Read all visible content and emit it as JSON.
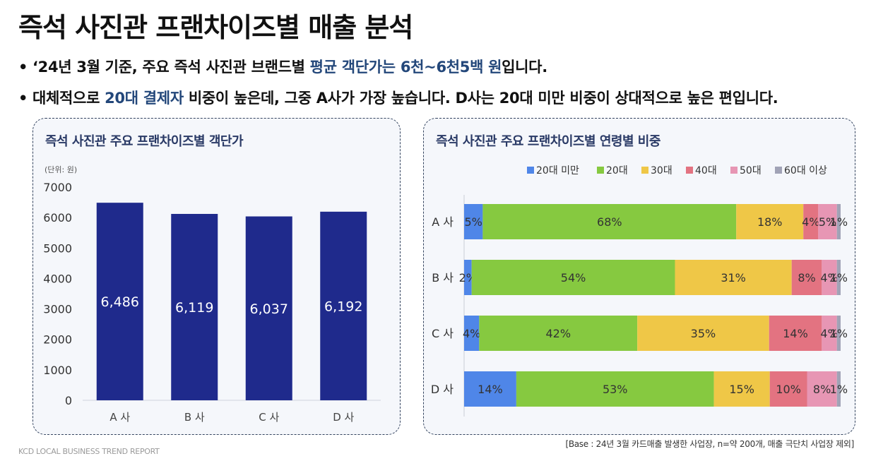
{
  "title": "즉석 사진관 프랜차이즈별 매출 분석",
  "bullets": [
    {
      "pre": "‘24년 3월 기준, 주요 즉석 사진관 브랜드별 ",
      "hl": "평균 객단가는 6천~6천5백 원",
      "post": "입니다."
    },
    {
      "pre": "대체적으로 ",
      "hl": "20대 결제자",
      "post": " 비중이 높은데, 그중 A사가 가장 높습니다. D사는 20대 미만 비중이 상대적으로 높은 편입니다."
    }
  ],
  "footer": {
    "left": "KCD LOCAL BUSINESS TREND REPORT",
    "right": "[Base : 24년 3월 카드매출 발생한 사업장, n=약 200개, 매출 극단치 사업장 제외]"
  },
  "colors": {
    "bar": "#1f2a8c",
    "accent": "#23477a"
  },
  "chart_data": [
    {
      "type": "bar",
      "title": "즉석 사진관 주요 프랜차이즈별 객단가",
      "unit_label": "(단위: 원)",
      "categories": [
        "A 사",
        "B 사",
        "C 사",
        "D 사"
      ],
      "values": [
        6486,
        6119,
        6037,
        6192
      ],
      "value_labels": [
        "6,486",
        "6,119",
        "6,037",
        "6,192"
      ],
      "ylim": [
        0,
        7000
      ],
      "yticks": [
        0,
        1000,
        2000,
        3000,
        4000,
        5000,
        6000,
        7000
      ],
      "color": "#1f2a8c"
    },
    {
      "type": "bar",
      "orientation": "horizontal",
      "stacked": true,
      "title": "즉석 사진관 주요 프랜차이즈별 연령별 비중",
      "legend_position": "top",
      "categories": [
        "A 사",
        "B 사",
        "C 사",
        "D 사"
      ],
      "series": [
        {
          "name": "20대 미만",
          "color": "#4f86e8",
          "values": [
            5,
            2,
            4,
            14
          ]
        },
        {
          "name": "20대",
          "color": "#86c940",
          "values": [
            68,
            54,
            42,
            53
          ]
        },
        {
          "name": "30대",
          "color": "#efc747",
          "values": [
            18,
            31,
            35,
            15
          ]
        },
        {
          "name": "40대",
          "color": "#e37381",
          "values": [
            4,
            8,
            14,
            10
          ]
        },
        {
          "name": "50대",
          "color": "#e796b4",
          "values": [
            5,
            4,
            4,
            8
          ]
        },
        {
          "name": "60대 이상",
          "color": "#a1a3b6",
          "values": [
            1,
            1,
            1,
            1
          ]
        }
      ]
    }
  ]
}
